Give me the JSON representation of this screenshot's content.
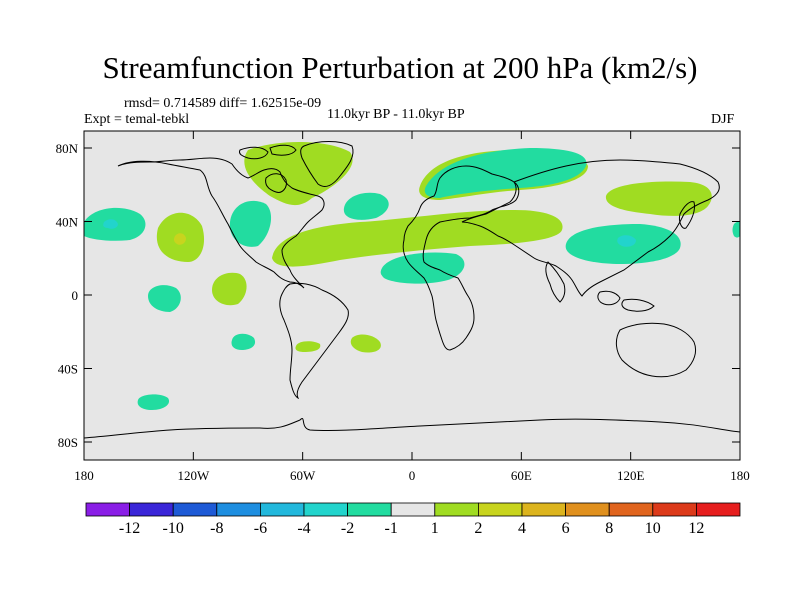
{
  "title": "Streamfunction Perturbation at 200 hPa (km2/s)",
  "stats": "rmsd= 0.714589 diff= 1.62515e-09",
  "experiment": "Expt = temal-tebkl",
  "period": "11.0kyr BP - 11.0kyr BP",
  "season": "DJF",
  "axes": {
    "y_ticks": [
      "80N",
      "40N",
      "0",
      "40S",
      "80S"
    ],
    "x_ticks": [
      "180",
      "120W",
      "60W",
      "0",
      "60E",
      "120E",
      "180"
    ]
  },
  "colorbar": {
    "labels": [
      "-12",
      "-10",
      "-8",
      "-6",
      "-4",
      "-2",
      "-1",
      "1",
      "2",
      "4",
      "6",
      "8",
      "10",
      "12"
    ],
    "colors": [
      "#8a1ee6",
      "#3a26d8",
      "#1e5ad6",
      "#1e8ee0",
      "#22b8dc",
      "#22d4cc",
      "#22dca0",
      "#e6e6e6",
      "#a0dc22",
      "#c8d41e",
      "#dcb41e",
      "#e0901e",
      "#e0641e",
      "#dc3a1a",
      "#e61e1e"
    ]
  },
  "colors": {
    "background": "#e6e6e6",
    "positive_1_2": "#a0dc22",
    "negative_1_2": "#22dca0",
    "positive_2_4": "#c8d41e",
    "negative_2_4": "#22d4cc"
  }
}
